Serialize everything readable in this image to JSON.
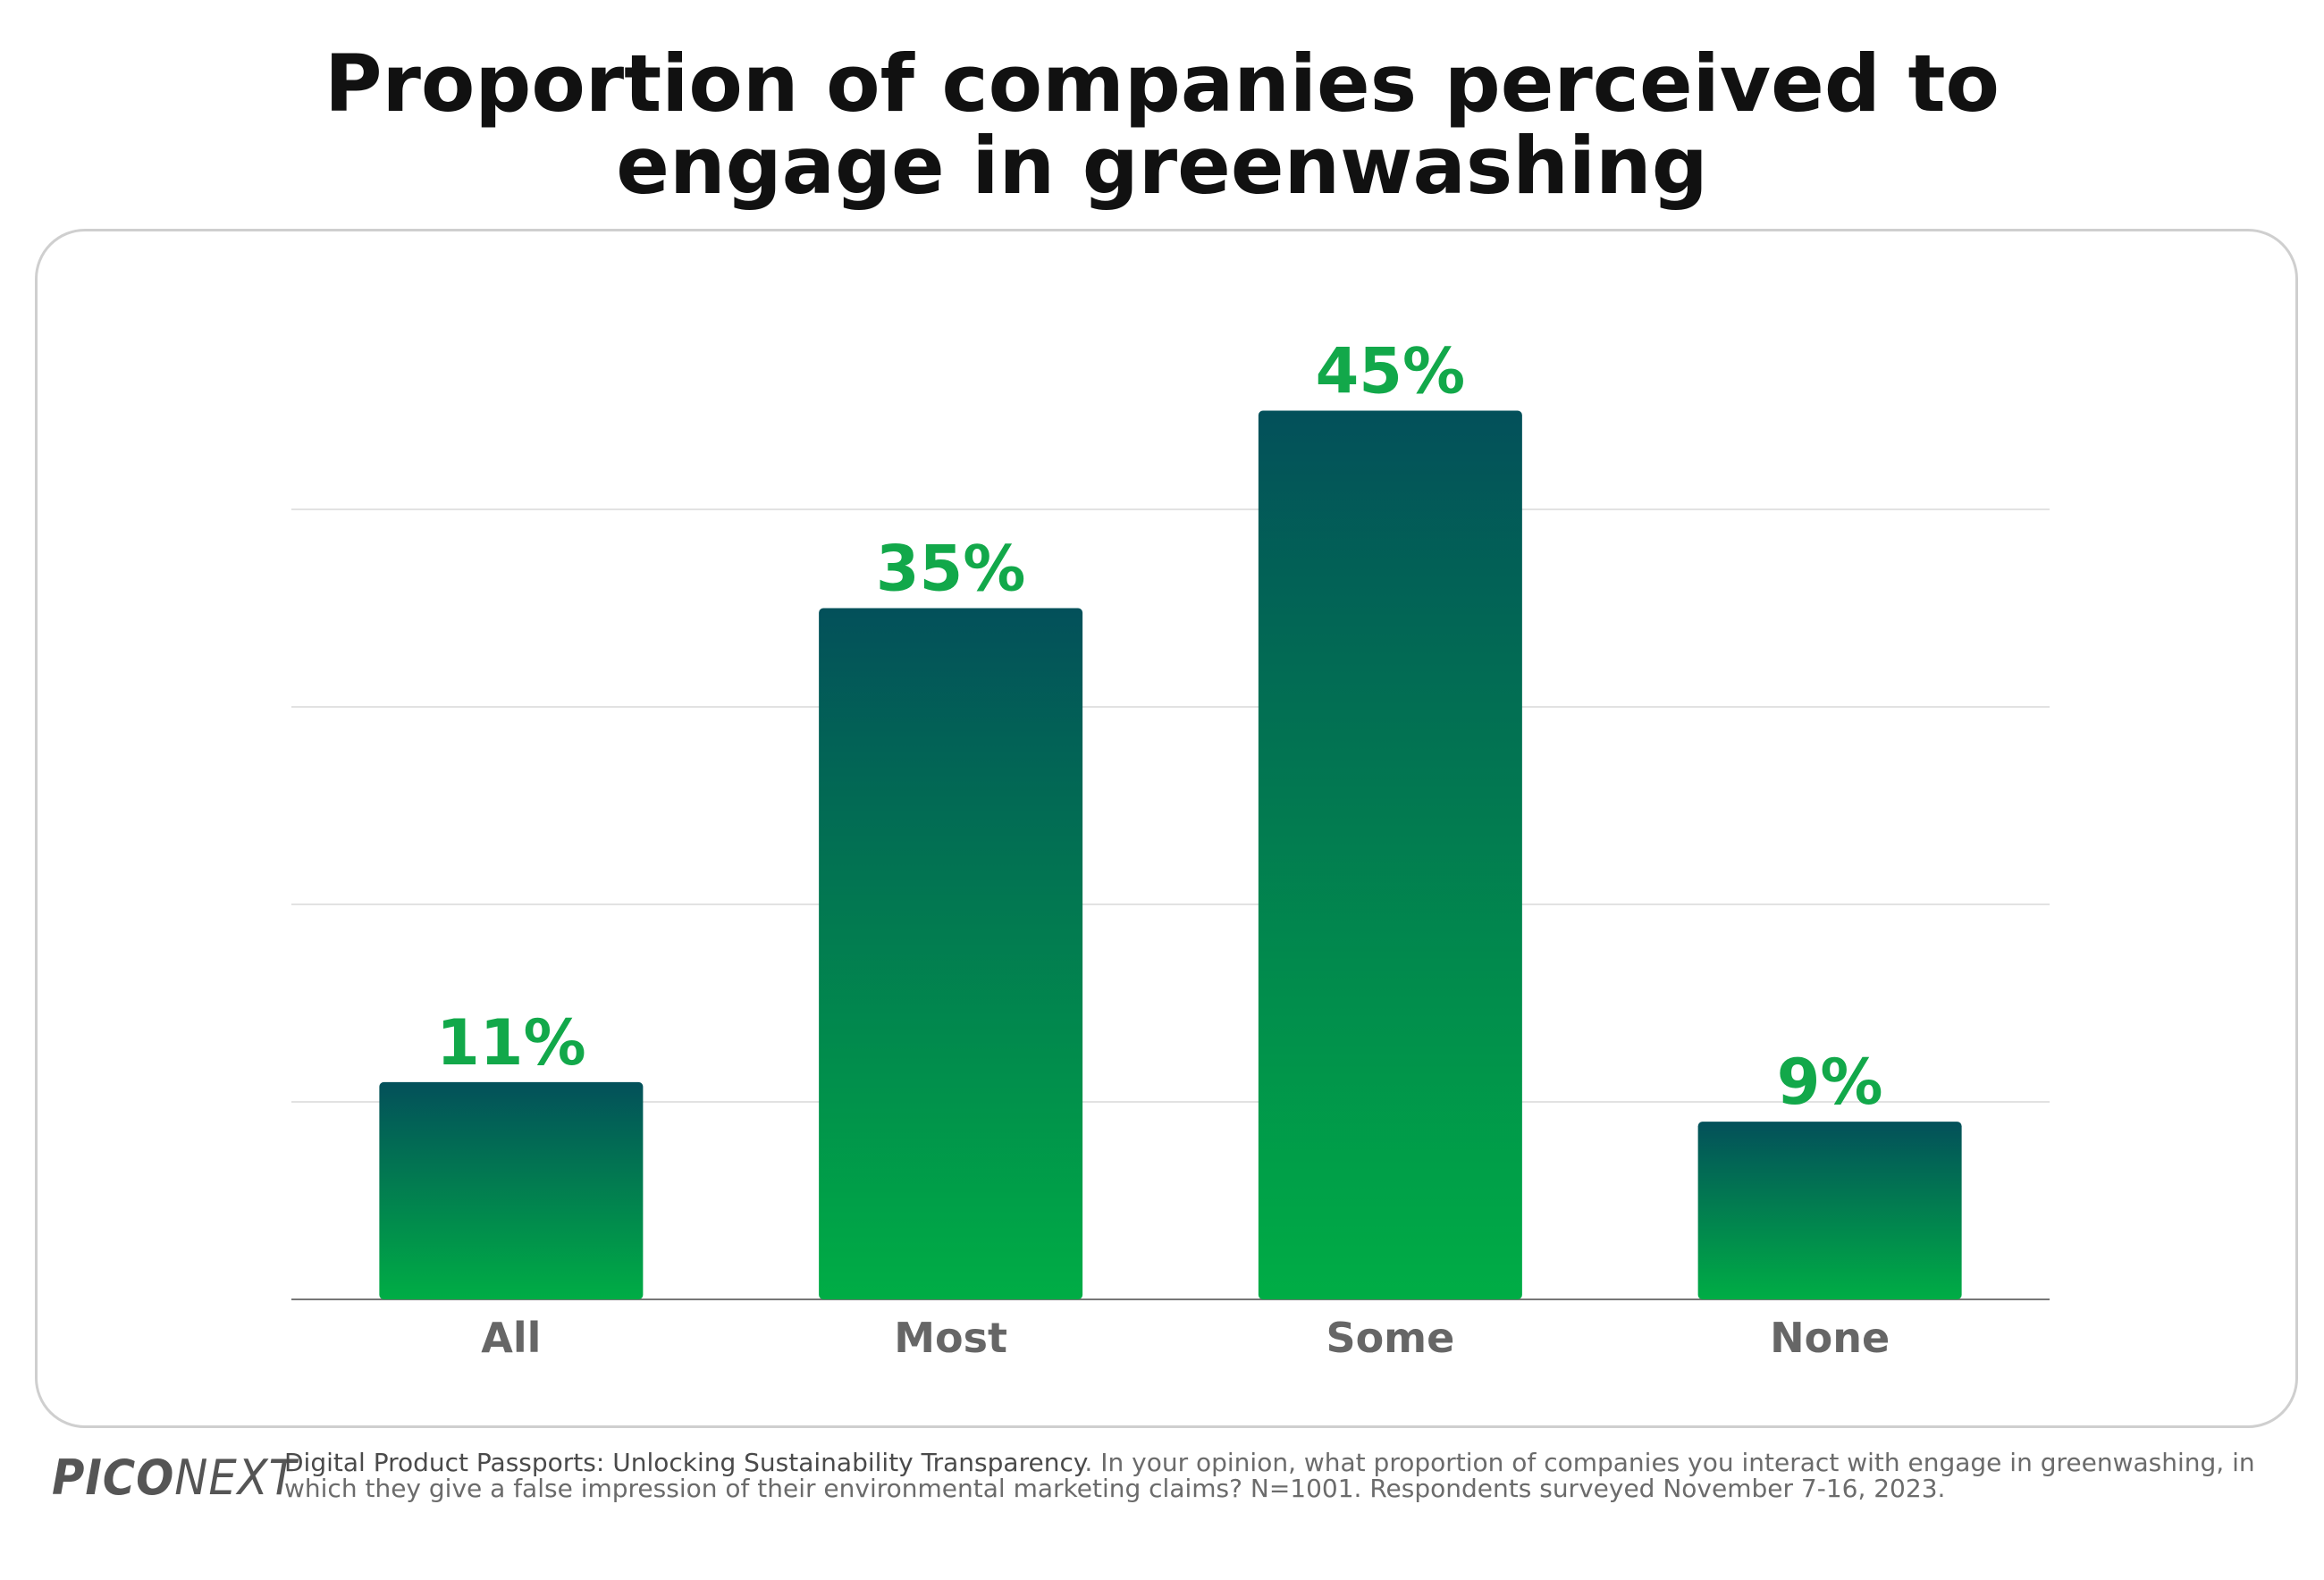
{
  "title": "Proportion of companies perceived to\nengage in greenwashing",
  "chart_data": {
    "type": "bar",
    "title": "Proportion of companies perceived to engage in greenwashing",
    "categories": [
      "All",
      "Most",
      "Some",
      "None"
    ],
    "values": [
      11,
      35,
      45,
      9
    ],
    "value_labels": [
      "11%",
      "35%",
      "45%",
      "9%"
    ],
    "xlabel": "",
    "ylabel": "",
    "ylim": [
      0,
      50
    ],
    "grid": true,
    "legend": "none"
  },
  "colors": {
    "bar_top": "#03505a",
    "bar_bottom": "#00ad45",
    "label": "#12a84a",
    "grid": "#e2e2e2",
    "axis": "#777777"
  },
  "logo": {
    "part1": "PICO",
    "part2": "NEXT"
  },
  "footnote": {
    "source": "Digital Product Passports: Unlocking Sustainability Transparency",
    "text": ". In your opinion, what proportion of companies you interact with engage in greenwashing, in which they give a false impression of their environmental marketing claims? N=1001. Respondents surveyed November 7-16, 2023."
  }
}
